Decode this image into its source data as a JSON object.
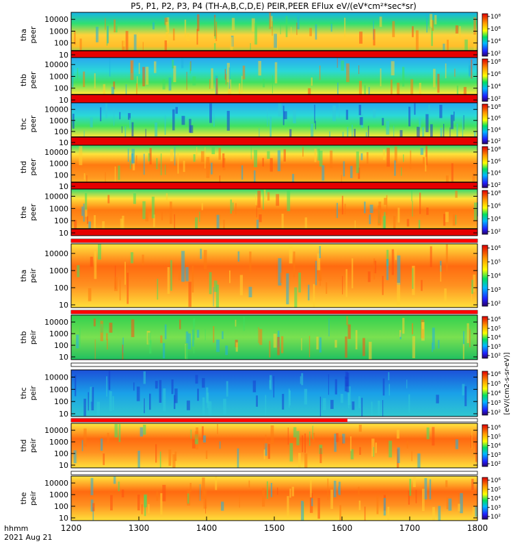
{
  "title": "P5, P1, P2, P3, P4 (TH-A,B,C,D,E) PEIR,PEER EFlux eV/(eV*cm²*sec*sr)",
  "colorbar_label": "[eV/(cm2-s-sr-eV)]",
  "x_label_line1": "hhmm",
  "x_label_line2": "2021 Aug 21",
  "colors": {
    "high": "#e60000",
    "mid": "#ff9a00",
    "low": "#00d000",
    "background": "#1b3bd6",
    "flag_red": "#ff0000"
  },
  "chart_data": {
    "type": "heatmap",
    "x_ticks": [
      "1200",
      "1300",
      "1400",
      "1500",
      "1600",
      "1700",
      "1800"
    ],
    "xlim": [
      1200,
      1800
    ],
    "y_ticks": [
      "10",
      "100",
      "1000",
      "10000"
    ],
    "y_scale": "log",
    "colorbar_ticks": [
      "10²",
      "10⁴",
      "10⁶",
      "10⁸"
    ],
    "colorbar_ticks_short": [
      "10²",
      "10³",
      "10⁴",
      "10⁵",
      "10⁶"
    ],
    "panels": [
      {
        "label_probe": "tha",
        "label_type": "peer"
      },
      {
        "label_probe": "thb",
        "label_type": "peer"
      },
      {
        "label_probe": "thc",
        "label_type": "peer"
      },
      {
        "label_probe": "thd",
        "label_type": "peer"
      },
      {
        "label_probe": "the",
        "label_type": "peer"
      },
      {
        "label_probe": "tha",
        "label_type": "peir"
      },
      {
        "label_probe": "thb",
        "label_type": "peir"
      },
      {
        "label_probe": "thc",
        "label_type": "peir"
      },
      {
        "label_probe": "thd",
        "label_type": "peir"
      },
      {
        "label_probe": "the",
        "label_type": "peir"
      }
    ]
  }
}
